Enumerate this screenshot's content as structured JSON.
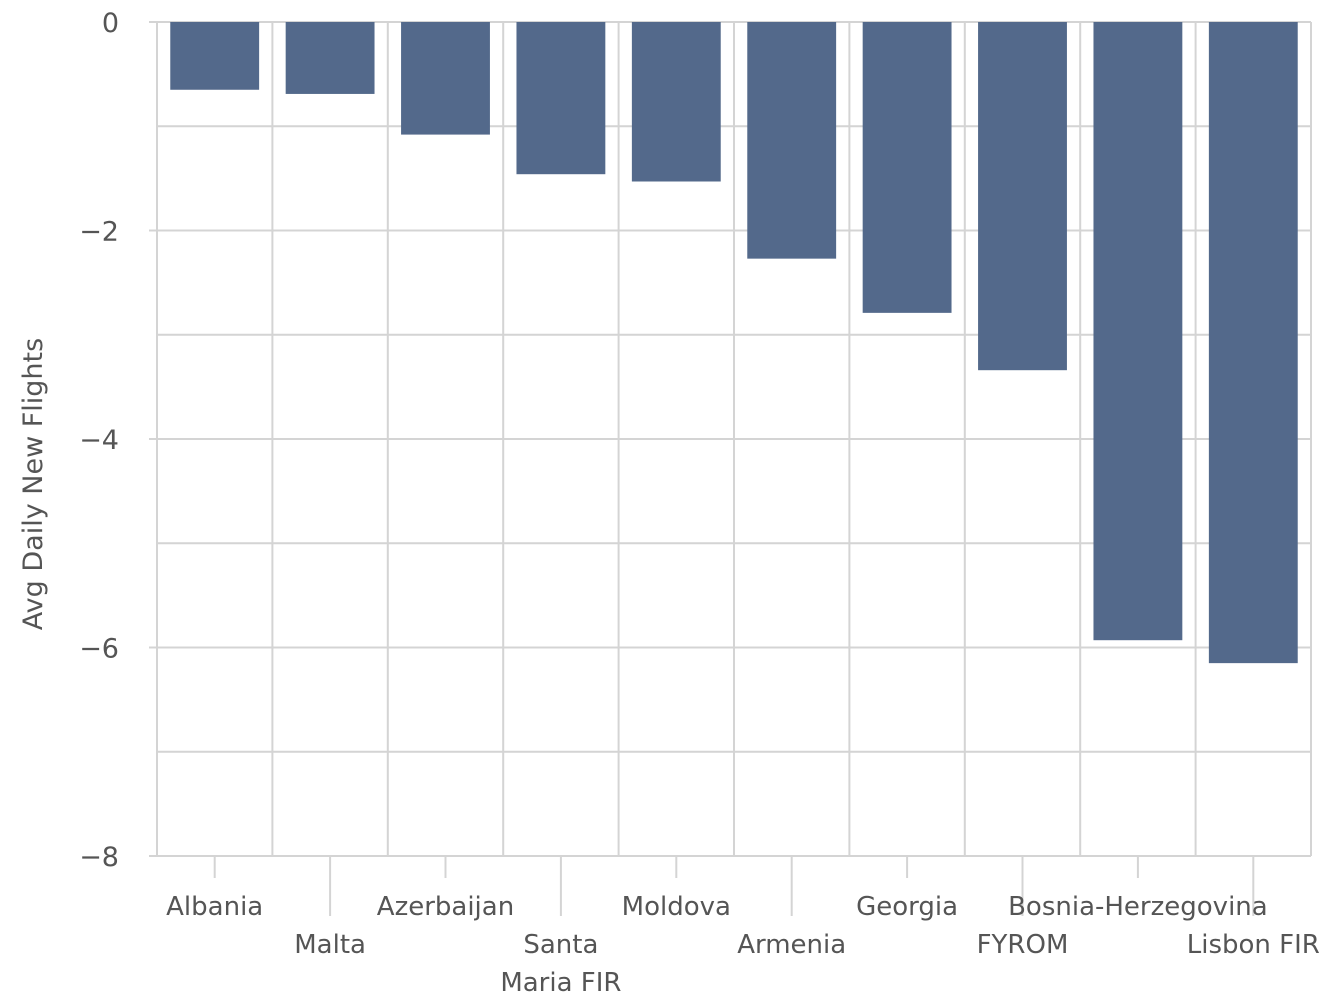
{
  "chart_data": {
    "type": "bar",
    "title": "",
    "xlabel": "",
    "ylabel": "Avg Daily New Flights",
    "ylim": [
      -8,
      0
    ],
    "y_ticks": [
      0,
      -2,
      -4,
      -6,
      -8
    ],
    "grid": true,
    "bar_color": "#53698b",
    "grid_color": "#d4d4d4",
    "categories": [
      [
        "Albania"
      ],
      [
        "Malta"
      ],
      [
        "Azerbaijan"
      ],
      [
        "Santa",
        "Maria FIR"
      ],
      [
        "Moldova"
      ],
      [
        "Armenia"
      ],
      [
        "Georgia"
      ],
      [
        "FYROM"
      ],
      [
        "Bosnia-Herzegovina"
      ],
      [
        "Lisbon FIR"
      ]
    ],
    "values": [
      -0.65,
      -0.69,
      -1.08,
      -1.46,
      -1.53,
      -2.27,
      -2.79,
      -3.34,
      -5.93,
      -6.15
    ]
  }
}
